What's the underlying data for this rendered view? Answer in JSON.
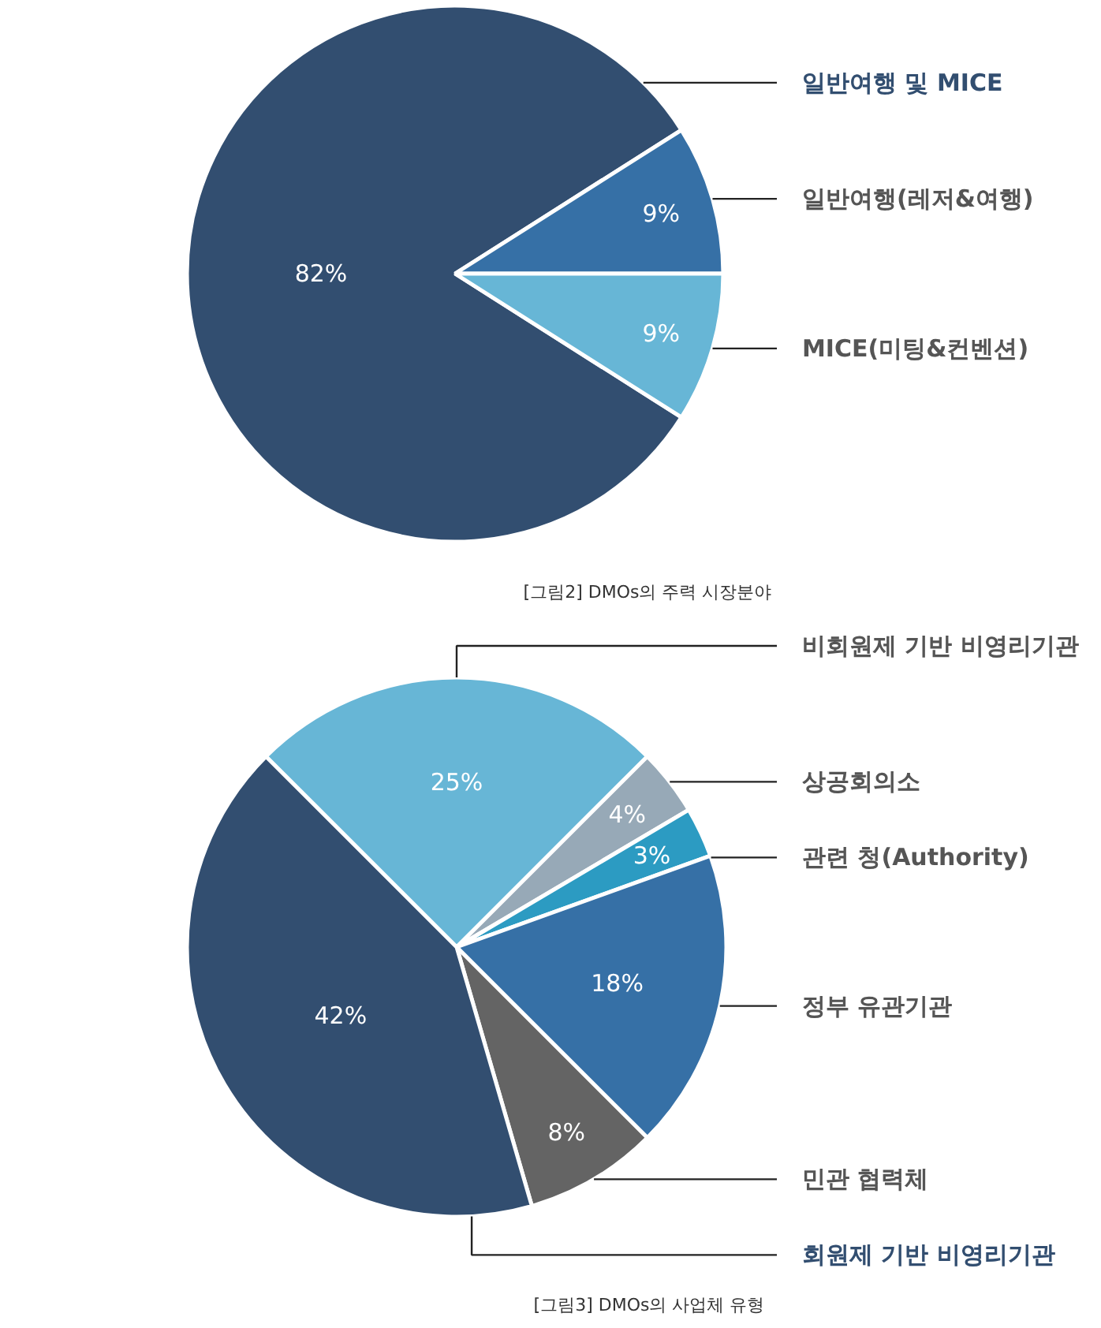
{
  "chart_data": [
    {
      "type": "pie",
      "categories": [
        "일반여행 및 MICE",
        "일반여행(레저&여행)",
        "MICE(미팅&컨벤션)"
      ],
      "values": [
        82,
        9,
        9
      ],
      "colors": [
        "#324e70",
        "#3670a6",
        "#67b6d6"
      ],
      "value_labels": [
        "82%",
        "9%",
        "9%"
      ],
      "annotations": [
        "[그림2] DMOs의 주력 시장분야"
      ]
    },
    {
      "type": "pie",
      "categories": [
        "비회원제 기반 비영리기관",
        "상공회의소",
        "관련 청(Authority)",
        "정부 유관기관",
        "민관 협력체",
        "회원제 기반 비영리기관"
      ],
      "values": [
        25,
        4,
        3,
        18,
        8,
        42
      ],
      "colors": [
        "#67b6d6",
        "#97a9b7",
        "#2c9bc2",
        "#3670a6",
        "#646464",
        "#324e70"
      ],
      "value_labels": [
        "25%",
        "4%",
        "3%",
        "18%",
        "8%",
        "42%"
      ],
      "annotations": [
        "[그림3] DMOs의 사업체 유형"
      ]
    }
  ]
}
